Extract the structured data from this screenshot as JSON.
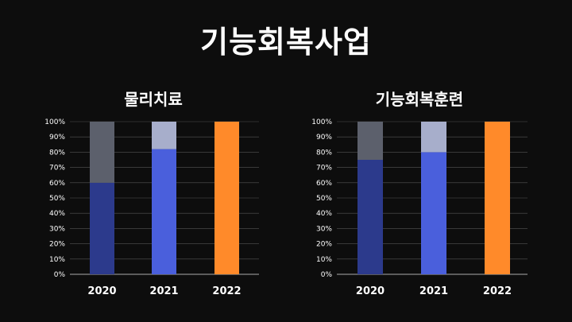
{
  "page": {
    "title": "기능회복사업"
  },
  "colors": {
    "background": "#0d0d0d",
    "grid": "#555555",
    "axis": "#aaaaaa"
  },
  "chart_data": [
    {
      "type": "bar",
      "stacked": true,
      "title": "물리치료",
      "categories": [
        "2020",
        "2021",
        "2022"
      ],
      "ylim": [
        0,
        100
      ],
      "yticks": [
        "0%",
        "10%",
        "20%",
        "30%",
        "40%",
        "50%",
        "60%",
        "70%",
        "80%",
        "90%",
        "100%"
      ],
      "grid": true,
      "segments": [
        {
          "bottom": 60,
          "top": 40,
          "bottom_color": "#2c3a8c",
          "top_color": "#5c606c"
        },
        {
          "bottom": 82,
          "top": 18,
          "bottom_color": "#4a5fdc",
          "top_color": "#a7aecb"
        },
        {
          "bottom": 100,
          "top": 0,
          "bottom_color": "#ff8a2a",
          "top_color": "#ff8a2a"
        }
      ]
    },
    {
      "type": "bar",
      "stacked": true,
      "title": "기능회복훈련",
      "categories": [
        "2020",
        "2021",
        "2022"
      ],
      "ylim": [
        0,
        100
      ],
      "yticks": [
        "0%",
        "10%",
        "20%",
        "30%",
        "40%",
        "50%",
        "60%",
        "70%",
        "80%",
        "90%",
        "100%"
      ],
      "grid": true,
      "segments": [
        {
          "bottom": 75,
          "top": 25,
          "bottom_color": "#2c3a8c",
          "top_color": "#5c606c"
        },
        {
          "bottom": 80,
          "top": 20,
          "bottom_color": "#4a5fdc",
          "top_color": "#a7aecb"
        },
        {
          "bottom": 100,
          "top": 0,
          "bottom_color": "#ff8a2a",
          "top_color": "#ff8a2a"
        }
      ]
    }
  ]
}
